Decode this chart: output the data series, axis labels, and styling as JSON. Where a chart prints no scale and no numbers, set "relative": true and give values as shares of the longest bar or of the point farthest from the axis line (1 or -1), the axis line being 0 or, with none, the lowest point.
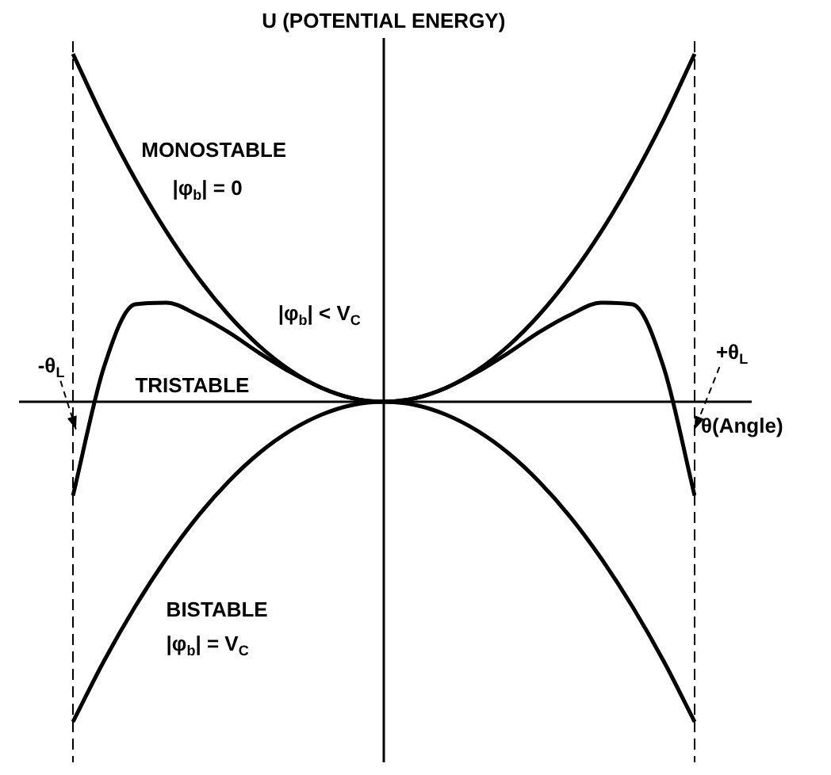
{
  "chart_data": {
    "type": "line",
    "relative": true,
    "ylabel": "U (POTENTIAL ENERGY)",
    "xlabel": "θ(Angle)",
    "categories": [
      null,
      null,
      null,
      null,
      null,
      null,
      null,
      null,
      null,
      null,
      null,
      null,
      null,
      null,
      null,
      null,
      null,
      null,
      null,
      null,
      null
    ],
    "legend": false,
    "grid": false,
    "tick_labels": false,
    "marker": "none",
    "line_style": "solid",
    "series": [
      {
        "name": "MONOSTABLE",
        "color": "#000000",
        "values": [
          1,
          0.81,
          0.64,
          0.49,
          0.36,
          0.25,
          0.16,
          0.09,
          0.04,
          0.01,
          0,
          0.01,
          0.04,
          0.09,
          0.16,
          0.25,
          0.36,
          0.49,
          0.64,
          0.81,
          1
        ]
      },
      {
        "name": "TRISTABLE",
        "color": "#000000",
        "values": [
          -0.27,
          0.1,
          0.28,
          0.285,
          0.25,
          0.2,
          0.14,
          0.085,
          0.04,
          0.01,
          0,
          0.01,
          0.04,
          0.085,
          0.14,
          0.2,
          0.25,
          0.285,
          0.28,
          0.1,
          -0.27
        ]
      },
      {
        "name": "BISTABLE",
        "color": "#000000",
        "values": [
          -0.92,
          -0.745,
          -0.589,
          -0.451,
          -0.331,
          -0.23,
          -0.147,
          -0.083,
          -0.037,
          -0.009,
          0,
          -0.009,
          -0.037,
          -0.083,
          -0.147,
          -0.23,
          -0.331,
          -0.451,
          -0.589,
          -0.745,
          -0.92
        ]
      }
    ],
    "annotations": [
      "|φ$_{b}$| = 0",
      "|φ$_{b}$| < V$_{C}$",
      "|φ$_{b}$| = V$_{C}$",
      "-θ$_{L}$",
      "+θ$_{L}$"
    ]
  }
}
